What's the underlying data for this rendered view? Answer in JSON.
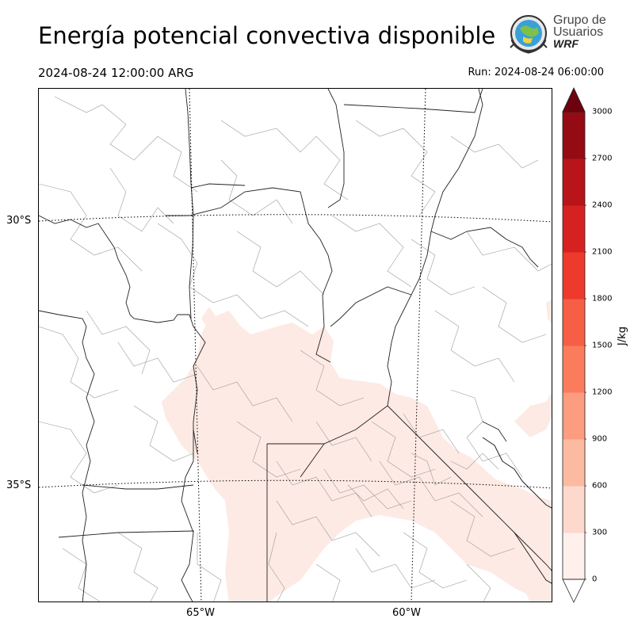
{
  "header": {
    "title": "Energía potencial convectiva disponible",
    "valid_time": "2024-08-24 12:00:00 ARG",
    "run_time": "Run: 2024-08-24 06:00:00"
  },
  "logo": {
    "line1": "Grupo de",
    "line2": "Usuarios",
    "line3": "WRF"
  },
  "map": {
    "lat_labels": [
      "30°S",
      "35°S"
    ],
    "lon_labels": [
      "65°W",
      "60°W"
    ]
  },
  "colorbar": {
    "unit": "J/kg",
    "ticks": [
      "0",
      "300",
      "600",
      "900",
      "1200",
      "1500",
      "1800",
      "2100",
      "2400",
      "2700",
      "3000"
    ],
    "colors": [
      "#fff0ec",
      "#fdd9cd",
      "#fcbba1",
      "#fc9c80",
      "#fb7c5c",
      "#f65f45",
      "#ee3a2c",
      "#d52220",
      "#b81419",
      "#940b13",
      "#6d010e"
    ]
  }
}
